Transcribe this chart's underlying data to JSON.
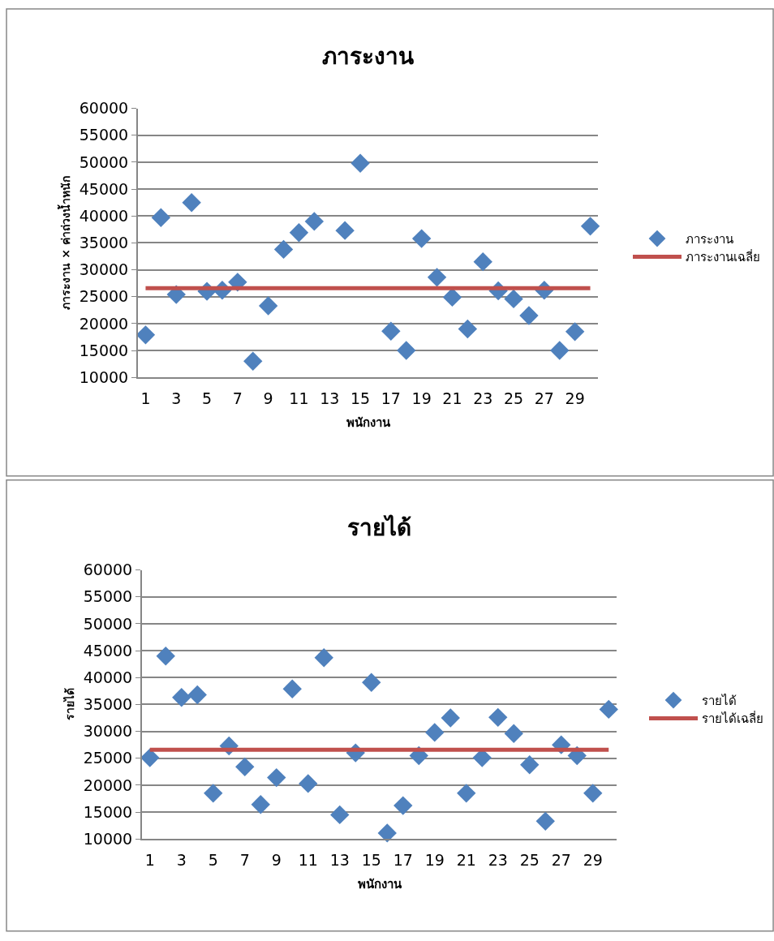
{
  "chart_data": [
    {
      "type": "scatter",
      "title": "ภาระงาน",
      "xlabel": "พนักงาน",
      "ylabel": "ภาระงาน × ค่าถ่วงน้ำหนัก",
      "x": [
        1,
        2,
        3,
        4,
        5,
        6,
        7,
        8,
        9,
        10,
        11,
        12,
        13,
        14,
        15,
        16,
        17,
        18,
        19,
        20,
        21,
        22,
        23,
        24,
        25,
        26,
        27,
        28,
        29,
        30
      ],
      "xlim": [
        0.5,
        30.5
      ],
      "xticks": [
        1,
        3,
        5,
        7,
        9,
        11,
        13,
        15,
        17,
        19,
        21,
        23,
        25,
        27,
        29
      ],
      "ylim": [
        10000,
        60000
      ],
      "yticks": [
        10000,
        15000,
        20000,
        25000,
        30000,
        35000,
        40000,
        45000,
        50000,
        55000,
        60000
      ],
      "grid": "y",
      "legend": "right",
      "series": [
        {
          "name": "ภาระงาน",
          "marker": "diamond",
          "color": "#4f81bd",
          "values": [
            17900,
            39700,
            25400,
            42500,
            26000,
            26200,
            27700,
            13000,
            23300,
            33800,
            36900,
            39000,
            null,
            37300,
            49800,
            null,
            18600,
            15000,
            35800,
            28600,
            24900,
            19000,
            31500,
            26100,
            24600,
            21500,
            26200,
            15000,
            18500,
            38100
          ]
        },
        {
          "name": "ภาระงานเฉลี่ย",
          "type": "line",
          "marker": "none",
          "line_style": "solid",
          "color": "#c0504d",
          "values": [
            26600,
            26600,
            26600,
            26600,
            26600,
            26600,
            26600,
            26600,
            26600,
            26600,
            26600,
            26600,
            26600,
            26600,
            26600,
            26600,
            26600,
            26600,
            26600,
            26600,
            26600,
            26600,
            26600,
            26600,
            26600,
            26600,
            26600,
            26600,
            26600,
            26600
          ]
        }
      ]
    },
    {
      "type": "scatter",
      "title": "รายได้",
      "xlabel": "พนักงาน",
      "ylabel": "รายได้",
      "x": [
        1,
        2,
        3,
        4,
        5,
        6,
        7,
        8,
        9,
        10,
        11,
        12,
        13,
        14,
        15,
        16,
        17,
        18,
        19,
        20,
        21,
        22,
        23,
        24,
        25,
        26,
        27,
        28,
        29,
        30
      ],
      "xlim": [
        0.5,
        30.5
      ],
      "xticks": [
        1,
        3,
        5,
        7,
        9,
        11,
        13,
        15,
        17,
        19,
        21,
        23,
        25,
        27,
        29
      ],
      "ylim": [
        10000,
        60000
      ],
      "yticks": [
        10000,
        15000,
        20000,
        25000,
        30000,
        35000,
        40000,
        45000,
        50000,
        55000,
        60000
      ],
      "grid": "y",
      "legend": "right",
      "series": [
        {
          "name": "รายได้",
          "marker": "diamond",
          "color": "#4f81bd",
          "values": [
            25100,
            44000,
            36300,
            36800,
            18500,
            27300,
            23400,
            16400,
            21400,
            37900,
            20300,
            43700,
            14500,
            26000,
            39100,
            11100,
            16200,
            25500,
            29800,
            32500,
            18500,
            25100,
            32600,
            29600,
            23800,
            13300,
            27500,
            25500,
            18500,
            34100
          ]
        },
        {
          "name": "รายได้เฉลี่ย",
          "type": "line",
          "marker": "none",
          "line_style": "solid",
          "color": "#c0504d",
          "values": [
            26600,
            26600,
            26600,
            26600,
            26600,
            26600,
            26600,
            26600,
            26600,
            26600,
            26600,
            26600,
            26600,
            26600,
            26600,
            26600,
            26600,
            26600,
            26600,
            26600,
            26600,
            26600,
            26600,
            26600,
            26600,
            26600,
            26600,
            26600,
            26600,
            26600
          ]
        }
      ]
    }
  ]
}
